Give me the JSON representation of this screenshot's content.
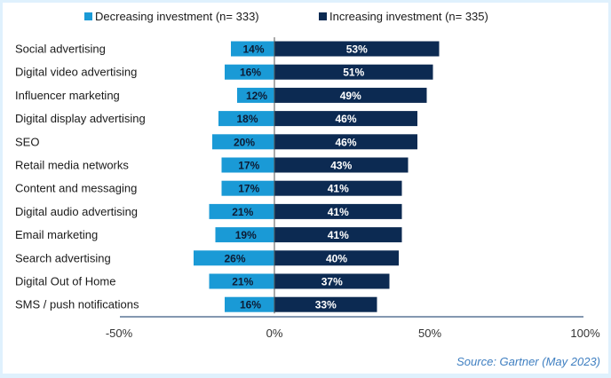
{
  "chart_data": {
    "type": "bar",
    "orientation": "horizontal-diverging",
    "title": "",
    "categories": [
      "Social advertising",
      "Digital video advertising",
      "Influencer marketing",
      "Digital display advertising",
      "SEO",
      "Retail media networks",
      "Content and messaging",
      "Digital audio advertising",
      "Email marketing",
      "Search advertising",
      "Digital Out of Home",
      "SMS / push notifications"
    ],
    "series": [
      {
        "name": "Decreasing investment (n= 333)",
        "color": "#1a9ad6",
        "label_color": "#0d1b33",
        "direction": "negative",
        "values": [
          14,
          16,
          12,
          18,
          20,
          17,
          17,
          21,
          19,
          26,
          21,
          16
        ],
        "labels": [
          "14%",
          "16%",
          "12%",
          "18%",
          "20%",
          "17%",
          "17%",
          "21%",
          "19%",
          "26%",
          "21%",
          "16%"
        ]
      },
      {
        "name": "Increasing investment (n= 335)",
        "color": "#0c2a52",
        "label_color": "#ffffff",
        "direction": "positive",
        "values": [
          53,
          51,
          49,
          46,
          46,
          43,
          41,
          41,
          41,
          40,
          37,
          33
        ],
        "labels": [
          "53%",
          "51%",
          "49%",
          "46%",
          "46%",
          "43%",
          "41%",
          "41%",
          "41%",
          "40%",
          "37%",
          "33%"
        ]
      }
    ],
    "xlim": [
      -50,
      100
    ],
    "xticks": [
      -50,
      0,
      50,
      100
    ],
    "xtick_labels": [
      "-50%",
      "0%",
      "50%",
      "100%"
    ],
    "xlabel": "",
    "ylabel": "",
    "grid": false,
    "legend_position": "top-center",
    "source": "Source: Gartner (May 2023)",
    "axis_color": "#3b5a80",
    "zero_line_color": "#555555"
  }
}
